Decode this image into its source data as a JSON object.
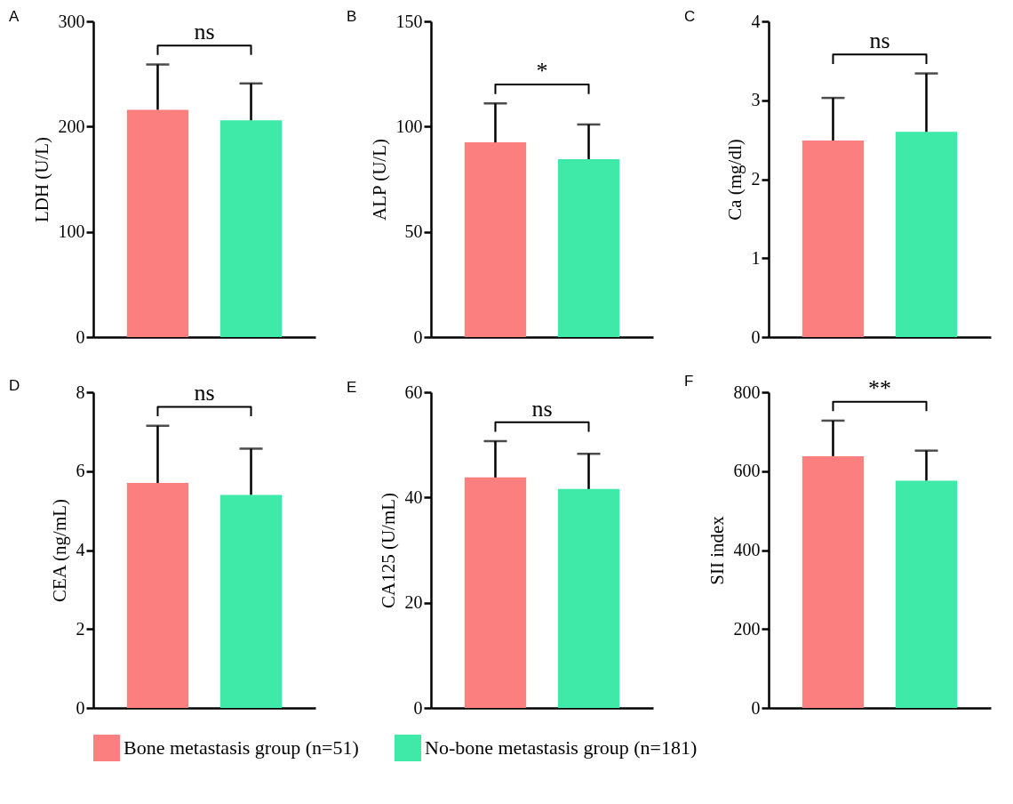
{
  "chart_data": [
    {
      "type": "bar",
      "title": "A",
      "ylabel": "LDH (U/L)",
      "categories": [
        null
      ],
      "series": [
        {
          "name": "Bone metastasis group (n=51)",
          "color": "#fa7f7e",
          "values": [
            216
          ],
          "errors": [
            [
              216,
              259
            ]
          ]
        },
        {
          "name": "No-bone metastasis group (n=181)",
          "color": "#3fe9a7",
          "values": [
            206
          ],
          "errors": [
            [
              206,
              241
            ]
          ]
        }
      ],
      "ylim": [
        0,
        300
      ],
      "yticks": [
        0,
        100,
        200,
        300
      ],
      "annotations": [
        "ns"
      ],
      "legend": "bottom"
    },
    {
      "type": "bar",
      "title": "B",
      "ylabel": "ALP (U/L)",
      "categories": [
        null
      ],
      "series": [
        {
          "name": "Bone metastasis group (n=51)",
          "color": "#fa7f7e",
          "values": [
            92.5
          ],
          "errors": [
            [
              92.5,
              111
            ]
          ]
        },
        {
          "name": "No-bone metastasis group (n=181)",
          "color": "#3fe9a7",
          "values": [
            84.5
          ],
          "errors": [
            [
              84.5,
              101
            ]
          ]
        }
      ],
      "ylim": [
        0,
        150
      ],
      "yticks": [
        0,
        50,
        100,
        150
      ],
      "annotations": [
        "*"
      ],
      "legend": "bottom"
    },
    {
      "type": "bar",
      "title": "C",
      "ylabel": "Ca (mg/dl)",
      "categories": [
        null
      ],
      "series": [
        {
          "name": "Bone metastasis group (n=51)",
          "color": "#fa7f7e",
          "values": [
            2.49
          ],
          "errors": [
            [
              2.49,
              3.03
            ]
          ]
        },
        {
          "name": "No-bone metastasis group (n=181)",
          "color": "#3fe9a7",
          "values": [
            2.6
          ],
          "errors": [
            [
              2.6,
              3.34
            ]
          ]
        }
      ],
      "ylim": [
        0,
        4
      ],
      "yticks": [
        0,
        1,
        2,
        3,
        4
      ],
      "annotations": [
        "ns"
      ],
      "legend": "bottom"
    },
    {
      "type": "bar",
      "title": "D",
      "ylabel": "CEA (ng/mL)",
      "categories": [
        null
      ],
      "series": [
        {
          "name": "Bone metastasis group (n=51)",
          "color": "#fa7f7e",
          "values": [
            5.7
          ],
          "errors": [
            [
              5.7,
              7.15
            ]
          ]
        },
        {
          "name": "No-bone metastasis group (n=181)",
          "color": "#3fe9a7",
          "values": [
            5.4
          ],
          "errors": [
            [
              5.4,
              6.57
            ]
          ]
        }
      ],
      "ylim": [
        0,
        8
      ],
      "yticks": [
        0,
        2,
        4,
        6,
        8
      ],
      "annotations": [
        "ns"
      ],
      "legend": "bottom"
    },
    {
      "type": "bar",
      "title": "E",
      "ylabel": "CA125 (U/mL)",
      "categories": [
        null
      ],
      "series": [
        {
          "name": "Bone metastasis group (n=51)",
          "color": "#fa7f7e",
          "values": [
            43.8
          ],
          "errors": [
            [
              43.8,
              50.7
            ]
          ]
        },
        {
          "name": "No-bone metastasis group (n=181)",
          "color": "#3fe9a7",
          "values": [
            41.6
          ],
          "errors": [
            [
              41.6,
              48.3
            ]
          ]
        }
      ],
      "ylim": [
        0,
        60
      ],
      "yticks": [
        0,
        20,
        40,
        60
      ],
      "annotations": [
        "ns"
      ],
      "legend": "bottom"
    },
    {
      "type": "bar",
      "title": "F",
      "ylabel": "SII index",
      "categories": [
        null
      ],
      "series": [
        {
          "name": "Bone metastasis group (n=51)",
          "color": "#fa7f7e",
          "values": [
            638
          ],
          "errors": [
            [
              638,
              728
            ]
          ]
        },
        {
          "name": "No-bone metastasis group (n=181)",
          "color": "#3fe9a7",
          "values": [
            576
          ],
          "errors": [
            [
              576,
              652
            ]
          ]
        }
      ],
      "ylim": [
        0,
        800
      ],
      "yticks": [
        0,
        200,
        400,
        600,
        800
      ],
      "annotations": [
        "**"
      ],
      "legend": "bottom"
    }
  ]
}
